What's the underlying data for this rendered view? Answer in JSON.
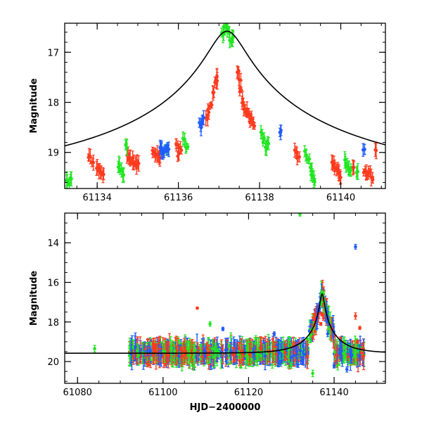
{
  "chart_data": [
    {
      "type": "scatter",
      "panel": "top",
      "ylabel": "Magnitude",
      "xlabel": "",
      "xlim": [
        61133.2,
        61141.1
      ],
      "ylim": [
        19.72,
        16.42
      ],
      "y_inverted": true,
      "xticks": [
        61134,
        61136,
        61138,
        61140
      ],
      "yticks": [
        17,
        18,
        19
      ],
      "colors": {
        "red": "#ff3b1f",
        "green": "#22e622",
        "blue": "#1f5cff",
        "model": "#000000"
      },
      "model_curve": {
        "type": "microlensing",
        "peak_time": 61137.2,
        "peak_mag": 16.58,
        "baseline_mag": 19.58
      },
      "series": [
        {
          "name": "red",
          "points": [
            [
              61133.8,
              19.05
            ],
            [
              61133.9,
              19.2
            ],
            [
              61134.0,
              19.3
            ],
            [
              61134.05,
              19.35
            ],
            [
              61134.1,
              19.4
            ],
            [
              61134.15,
              19.45
            ],
            [
              61134.75,
              19.05
            ],
            [
              61134.8,
              19.1
            ],
            [
              61134.85,
              19.15
            ],
            [
              61134.9,
              19.2
            ],
            [
              61134.95,
              19.2
            ],
            [
              61135.0,
              19.25
            ],
            [
              61135.4,
              19.0
            ],
            [
              61135.45,
              19.05
            ],
            [
              61135.5,
              19.1
            ],
            [
              61135.55,
              19.1
            ],
            [
              61135.95,
              18.85
            ],
            [
              61136.0,
              19.0
            ],
            [
              61136.05,
              18.9
            ],
            [
              61136.7,
              18.3
            ],
            [
              61136.75,
              18.2
            ],
            [
              61136.8,
              18.05
            ],
            [
              61136.85,
              17.8
            ],
            [
              61136.9,
              17.6
            ],
            [
              61136.95,
              17.5
            ],
            [
              61137.45,
              17.4
            ],
            [
              61137.5,
              17.55
            ],
            [
              61137.55,
              17.75
            ],
            [
              61137.6,
              18.0
            ],
            [
              61137.65,
              18.15
            ],
            [
              61137.7,
              18.2
            ],
            [
              61137.75,
              18.25
            ],
            [
              61137.8,
              18.35
            ],
            [
              61137.85,
              18.4
            ],
            [
              61138.9,
              19.0
            ],
            [
              61138.95,
              19.1
            ],
            [
              61139.8,
              19.2
            ],
            [
              61139.85,
              19.3
            ],
            [
              61139.9,
              19.35
            ],
            [
              61139.95,
              19.4
            ],
            [
              61140.0,
              19.5
            ],
            [
              61140.3,
              19.3
            ],
            [
              61140.6,
              19.35
            ],
            [
              61140.65,
              19.45
            ],
            [
              61140.7,
              19.4
            ],
            [
              61140.75,
              19.5
            ],
            [
              61140.85,
              18.95
            ]
          ]
        },
        {
          "name": "green",
          "points": [
            [
              61133.25,
              19.55
            ],
            [
              61133.3,
              19.6
            ],
            [
              61133.35,
              19.5
            ],
            [
              61134.55,
              19.25
            ],
            [
              61134.6,
              19.35
            ],
            [
              61134.65,
              19.45
            ],
            [
              61134.7,
              18.85
            ],
            [
              61135.7,
              18.95
            ],
            [
              61136.15,
              18.75
            ],
            [
              61136.2,
              18.9
            ],
            [
              61137.1,
              16.65
            ],
            [
              61137.15,
              16.5
            ],
            [
              61137.2,
              16.5
            ],
            [
              61137.25,
              16.6
            ],
            [
              61137.3,
              16.8
            ],
            [
              61137.35,
              16.7
            ],
            [
              61138.05,
              18.6
            ],
            [
              61138.1,
              18.75
            ],
            [
              61138.15,
              18.9
            ],
            [
              61138.2,
              18.8
            ],
            [
              61139.15,
              19.05
            ],
            [
              61139.2,
              19.15
            ],
            [
              61139.25,
              19.3
            ],
            [
              61139.3,
              19.45
            ],
            [
              61139.35,
              19.55
            ],
            [
              61140.1,
              19.15
            ],
            [
              61140.15,
              19.25
            ],
            [
              61140.2,
              19.3
            ],
            [
              61140.25,
              19.35
            ],
            [
              61140.4,
              19.4
            ]
          ]
        },
        {
          "name": "blue",
          "points": [
            [
              61135.55,
              18.9
            ],
            [
              61135.6,
              18.95
            ],
            [
              61135.65,
              19.0
            ],
            [
              61135.7,
              18.9
            ],
            [
              61135.75,
              18.95
            ],
            [
              61136.55,
              18.45
            ],
            [
              61136.6,
              18.35
            ],
            [
              61138.5,
              18.6
            ],
            [
              61140.55,
              18.95
            ]
          ]
        }
      ]
    },
    {
      "type": "scatter",
      "panel": "bottom",
      "ylabel": "Magnitude",
      "xlabel": "HJD−2400000",
      "xlim": [
        61077,
        61152
      ],
      "ylim": [
        21.1,
        12.5
      ],
      "y_inverted": true,
      "xticks": [
        61080,
        61100,
        61120,
        61140
      ],
      "xtick_labels": [
        "61080",
        "61100",
        "61120",
        "61140"
      ],
      "yticks": [
        14,
        16,
        18,
        20
      ],
      "model_curve": {
        "type": "microlensing",
        "peak_time": 61137.2,
        "peak_mag": 16.58,
        "baseline_mag": 19.58
      },
      "band": {
        "x_start": 61092,
        "x_end": 61147,
        "center_mag": 19.55,
        "scatter": 0.45
      },
      "series": [
        {
          "name": "green",
          "points": [
            [
              61084,
              19.35
            ],
            [
              61132,
              12.55
            ],
            [
              61137.2,
              16.5
            ],
            [
              61137.3,
              16.7
            ],
            [
              61136.9,
              17.0
            ],
            [
              61130,
              20.2
            ],
            [
              61135,
              20.6
            ],
            [
              61111,
              18.1
            ]
          ]
        },
        {
          "name": "blue",
          "points": [
            [
              61145,
              14.2
            ],
            [
              61114,
              18.35
            ],
            [
              61126,
              18.6
            ],
            [
              61138.5,
              18.6
            ],
            [
              61140,
              20.2
            ],
            [
              61143,
              20.4
            ]
          ]
        },
        {
          "name": "red",
          "points": [
            [
              61108,
              17.3
            ],
            [
              61137.1,
              17.6
            ],
            [
              61137.5,
              17.8
            ],
            [
              61136.9,
              18.1
            ],
            [
              61145,
              17.7
            ],
            [
              61146,
              18.3
            ],
            [
              61145.5,
              19.0
            ]
          ]
        }
      ]
    }
  ]
}
